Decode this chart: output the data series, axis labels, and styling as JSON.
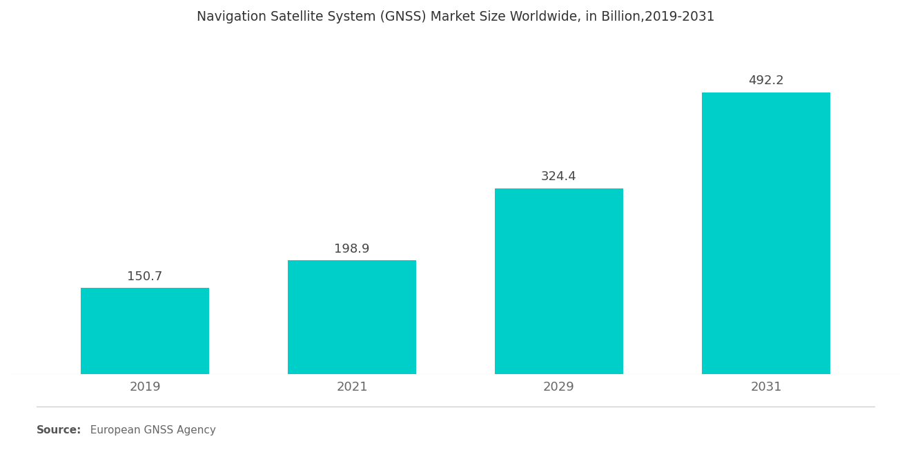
{
  "title": "Navigation Satellite System (GNSS) Market Size Worldwide, in Billion,2019-2031",
  "categories": [
    "2019",
    "2021",
    "2029",
    "2031"
  ],
  "values": [
    150.7,
    198.9,
    324.4,
    492.2
  ],
  "bar_color": "#00CEC9",
  "bar_width": 0.62,
  "background_color": "#FFFFFF",
  "title_fontsize": 13.5,
  "tick_fontsize": 13,
  "value_fontsize": 13,
  "ylim": [
    0,
    580
  ],
  "value_color": "#444444",
  "source_bold": "Source:",
  "source_normal": "  European GNSS Agency",
  "source_fontsize": 11,
  "xlim_left": -0.65,
  "xlim_right": 3.65
}
